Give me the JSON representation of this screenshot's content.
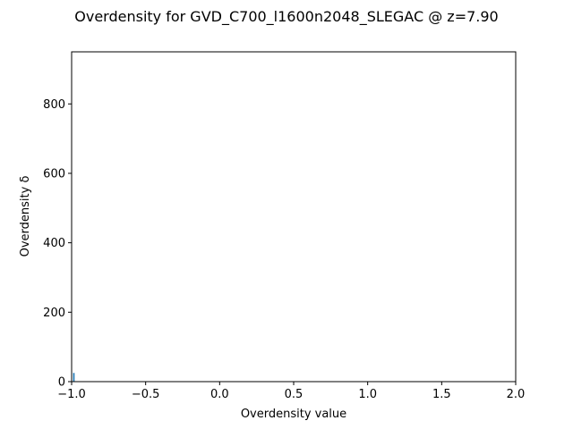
{
  "chart_data": {
    "type": "histogram",
    "title": "Overdensity for GVD_C700_l1600n2048_SLEGAC @ z=7.90",
    "xlabel": "Overdensity value",
    "ylabel": "Overdensity δ",
    "xlim": [
      -1.0,
      2.0
    ],
    "ylim": [
      0,
      950
    ],
    "x_ticks": [
      -1.0,
      -0.5,
      0.0,
      0.5,
      1.0,
      1.5,
      2.0
    ],
    "x_tick_labels": [
      "−1.0",
      "−0.5",
      "0.0",
      "0.5",
      "1.0",
      "1.5",
      "2.0"
    ],
    "y_ticks": [
      0,
      200,
      400,
      600,
      800
    ],
    "y_tick_labels": [
      "0",
      "200",
      "400",
      "600",
      "800"
    ],
    "bins": [
      {
        "x0": -0.99,
        "x1": -0.98,
        "count": 25
      }
    ],
    "bar_color": "#1f77b4",
    "grid": false,
    "legend": "none"
  }
}
